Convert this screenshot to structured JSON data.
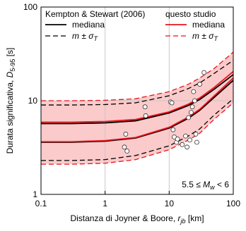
{
  "chart_data": {
    "type": "line",
    "xlabel": {
      "text": "Distanza di Joyner & Boore, ",
      "var": "r",
      "sub": "jb",
      "unit": " [km]"
    },
    "ylabel": {
      "text": "Durata significativa, ",
      "var": "D",
      "sub": "5-95",
      "unit": " [s]"
    },
    "annotation": {
      "text": "5.5 ≤ ",
      "var": "M",
      "sub": "w",
      "rest": " < 6"
    },
    "xscale": "log",
    "yscale": "log",
    "xlim": [
      0.1,
      100
    ],
    "ylim": [
      1,
      100
    ],
    "xticks": [
      0.1,
      1,
      10,
      100
    ],
    "yticks": [
      1,
      10,
      100
    ],
    "grid": {
      "x": [
        1,
        10
      ],
      "y": [
        10
      ],
      "color": "#c8c8c8"
    },
    "x": [
      0.1,
      0.3,
      1,
      3,
      10,
      20,
      30,
      50,
      100
    ],
    "series": [
      {
        "color": "#000000",
        "dash": false,
        "values": [
          5.7,
          5.7,
          5.8,
          6.1,
          7.4,
          8.9,
          10.3,
          13.2,
          19
        ]
      },
      {
        "color": "#e8141c",
        "dash": false,
        "values": [
          5.9,
          5.9,
          6.0,
          6.3,
          7.6,
          9.2,
          10.7,
          13.8,
          20.5
        ]
      },
      {
        "color": "#000000",
        "dash": false,
        "values": [
          3.6,
          3.6,
          3.7,
          4.0,
          5.1,
          6.5,
          7.9,
          10.8,
          16.5
        ]
      },
      {
        "color": "#e8141c",
        "dash": false,
        "values": [
          3.65,
          3.65,
          3.75,
          4.05,
          5.2,
          6.7,
          8.1,
          11.2,
          17.5
        ]
      },
      {
        "color": "#e8141c",
        "dash": true,
        "values": [
          10,
          10,
          10.1,
          10.5,
          12.5,
          15,
          17.5,
          22,
          33
        ]
      },
      {
        "color": "#e8141c",
        "dash": true,
        "values": [
          2.1,
          2.1,
          2.15,
          2.35,
          3.0,
          3.8,
          4.5,
          6.3,
          9.5
        ]
      },
      {
        "color": "#000000",
        "dash": true,
        "values": [
          9,
          9,
          9.1,
          9.5,
          11.3,
          13.5,
          15.5,
          19.5,
          27
        ]
      },
      {
        "color": "#000000",
        "dash": true,
        "values": [
          2.3,
          2.3,
          2.35,
          2.6,
          3.3,
          4.2,
          5.0,
          7.0,
          10.5
        ]
      }
    ],
    "shade": {
      "color": "#fbcaca",
      "between": [
        4,
        5
      ]
    },
    "points": {
      "x": [
        2.1,
        2.0,
        2.2,
        4.2,
        4.3,
        10.5,
        11,
        11.5,
        12,
        13,
        13.5,
        16,
        18,
        20,
        21,
        22,
        23,
        24,
        25,
        26,
        27,
        30,
        35,
        19
      ],
      "y": [
        4.4,
        3.2,
        2.9,
        8.6,
        6.9,
        9.7,
        9.5,
        4.9,
        4.1,
        3.6,
        3.9,
        3.4,
        4.2,
        6.6,
        3.8,
        7.5,
        8.6,
        12.5,
        10,
        4.4,
        3.6,
        15,
        20,
        3.2
      ]
    },
    "legend": [
      {
        "title": "Kempton & Stewart (2006)",
        "entries": [
          {
            "label": "mediana",
            "color": "#000000",
            "dash": false
          },
          {
            "label": "m ± σ",
            "sub": "T",
            "color": "#000000",
            "dash": true
          }
        ]
      },
      {
        "title": "questo studio",
        "entries": [
          {
            "label": "mediana",
            "color": "#e8141c",
            "dash": false
          },
          {
            "label": "m ± σ",
            "sub": "T",
            "color": "#e8141c",
            "dash": true
          }
        ]
      }
    ]
  }
}
